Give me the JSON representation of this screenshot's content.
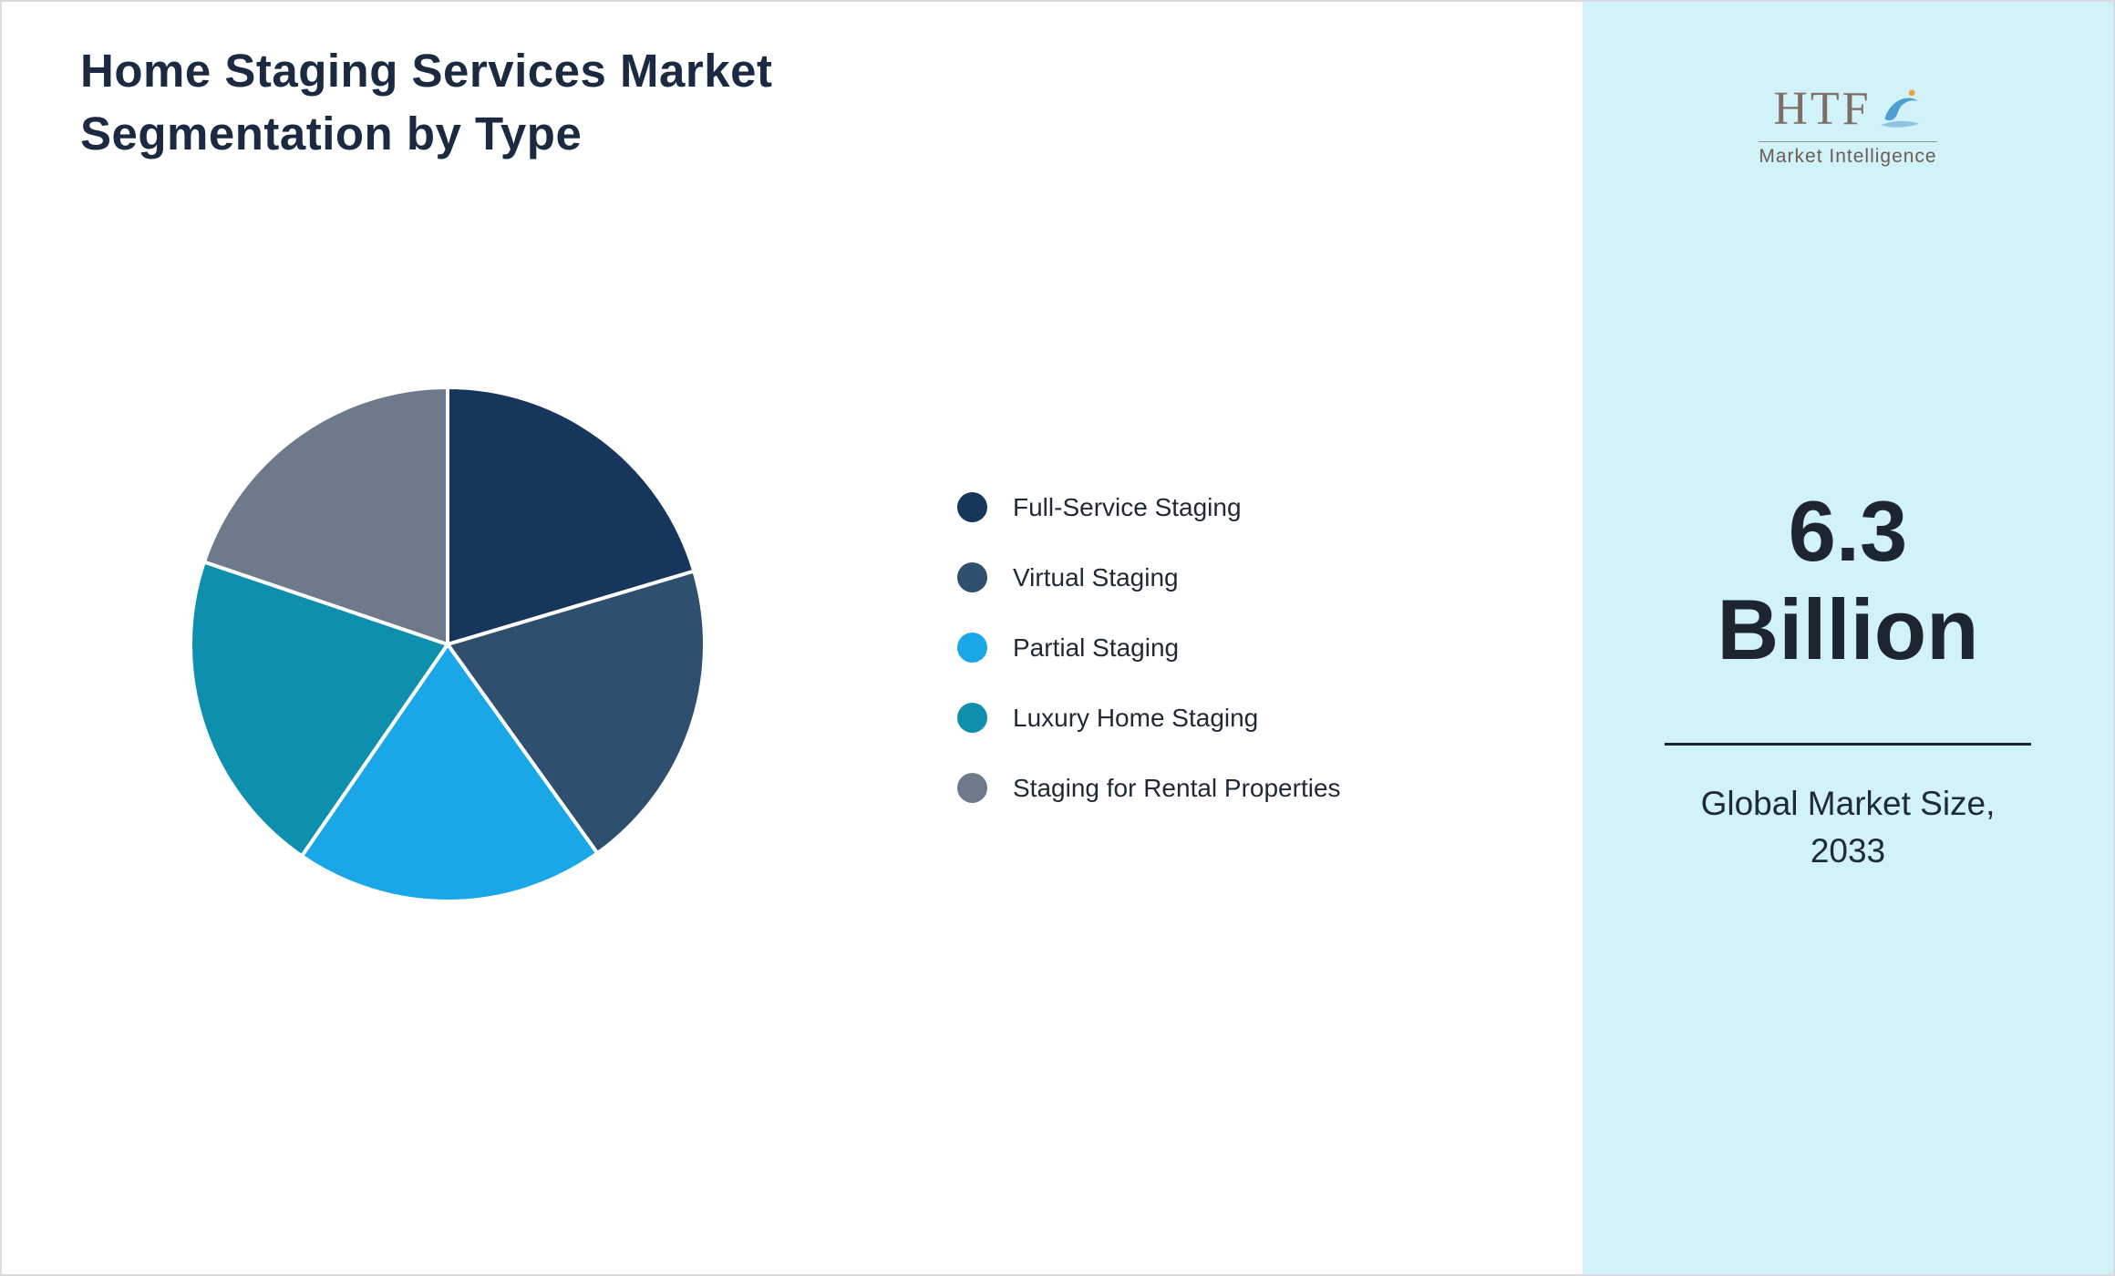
{
  "title": {
    "line1": "Home Staging Services Market",
    "line2": "Segmentation by Type"
  },
  "chart_data": {
    "type": "pie",
    "title": "Home Staging Services Market Segmentation by Type",
    "categories": [
      "Full-Service Staging",
      "Virtual Staging",
      "Partial Staging",
      "Luxury Home Staging",
      "Staging for Rental Properties"
    ],
    "values": [
      20.4,
      19.7,
      19.5,
      20.6,
      19.8
    ],
    "colors": [
      "#17365c",
      "#2f4f6f",
      "#1aa7e8",
      "#0e8fae",
      "#6e7a8a"
    ],
    "start_angle_deg": 0,
    "direction": "clockwise",
    "legend_position": "right",
    "slice_stroke": "#ffffff"
  },
  "sidebar": {
    "background": "#d2f2fa",
    "logo_text": "HTF",
    "logo_subtext": "Market Intelligence",
    "market_size_value": "6.3",
    "market_size_unit": "Billion",
    "caption_line1": "Global Market Size,",
    "caption_line2": "2033"
  }
}
